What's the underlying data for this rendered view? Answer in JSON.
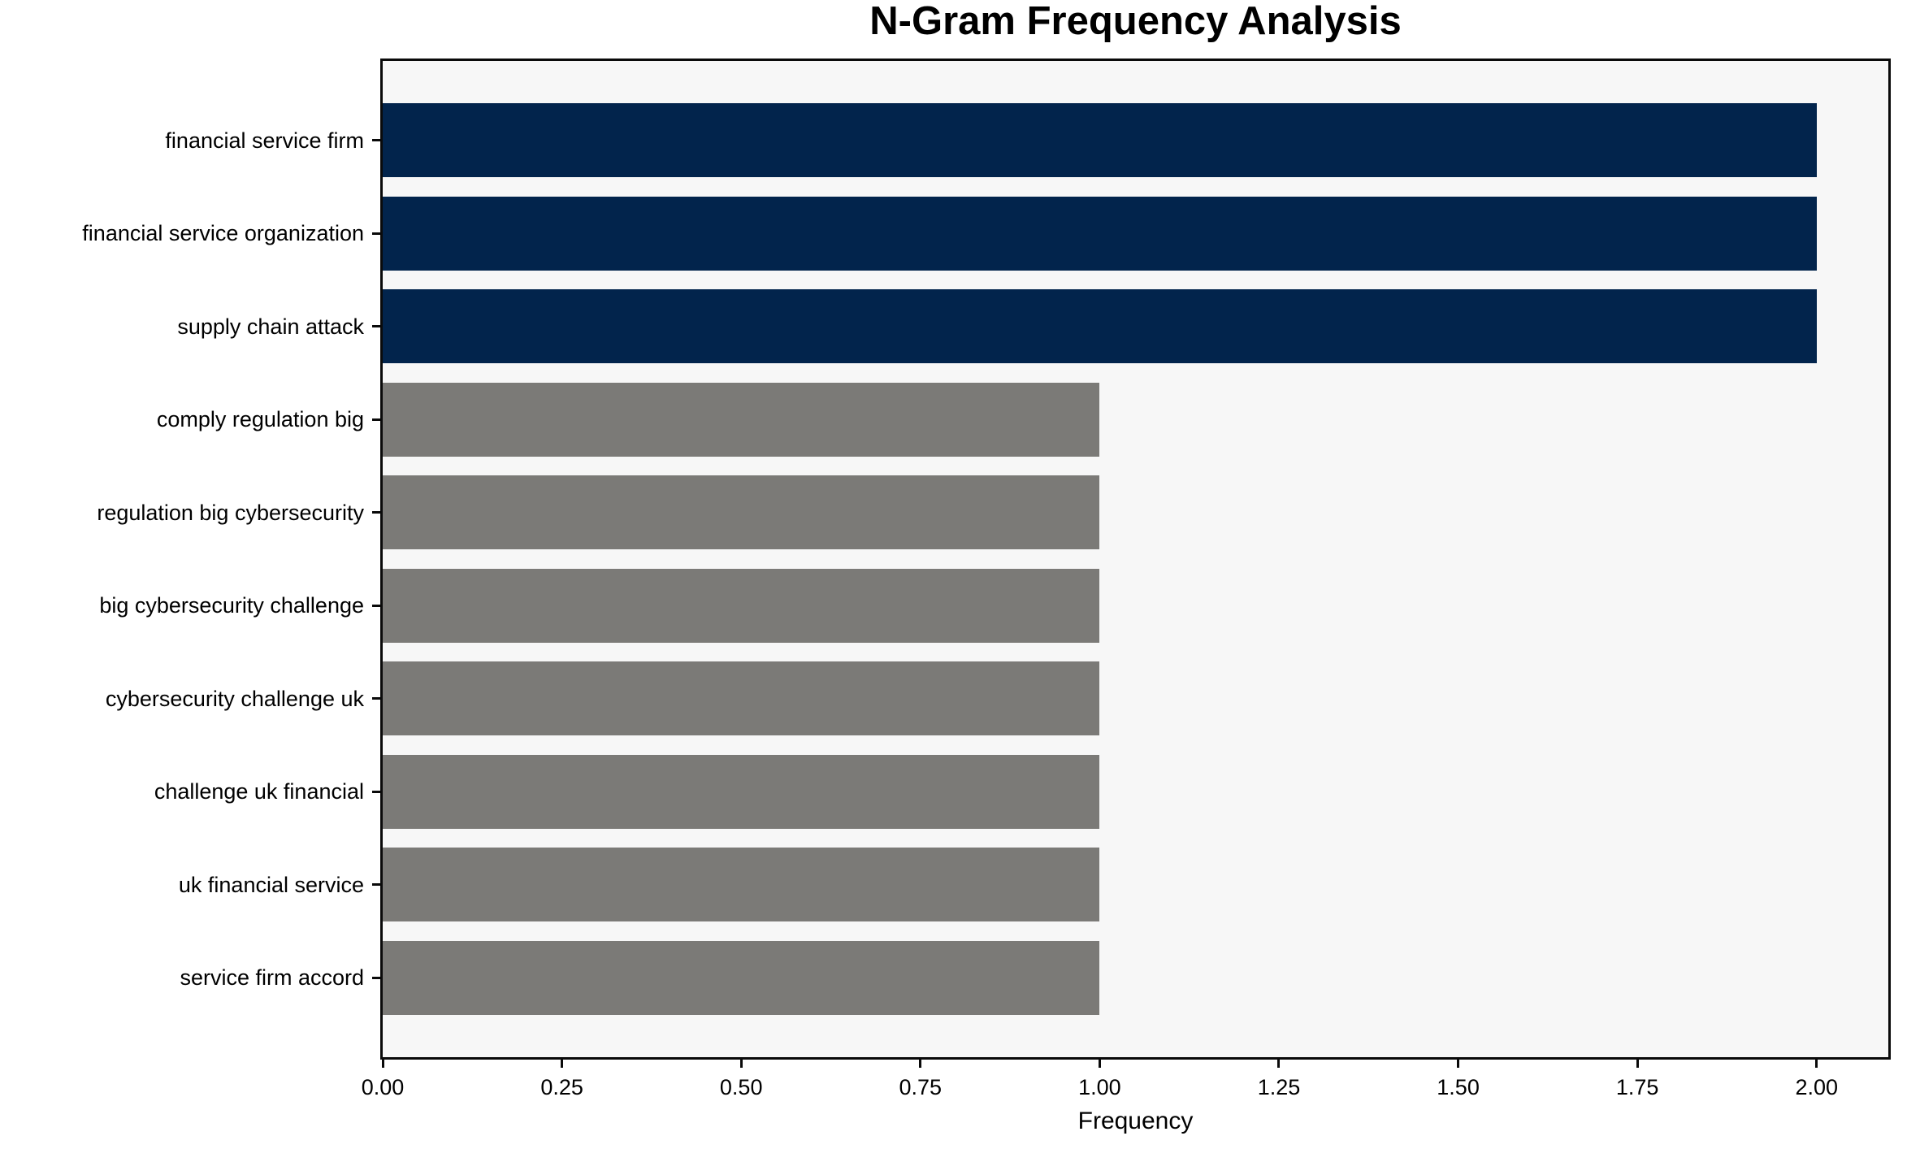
{
  "chart_data": {
    "type": "bar",
    "orientation": "horizontal",
    "title": "N-Gram Frequency Analysis",
    "xlabel": "Frequency",
    "ylabel": "",
    "categories": [
      "financial service firm",
      "financial service organization",
      "supply chain attack",
      "comply regulation big",
      "regulation big cybersecurity",
      "big cybersecurity challenge",
      "cybersecurity challenge uk",
      "challenge uk financial",
      "uk financial service",
      "service firm accord"
    ],
    "values": [
      2,
      2,
      2,
      1,
      1,
      1,
      1,
      1,
      1,
      1
    ],
    "bar_colors": [
      "#02244c",
      "#02244c",
      "#02244c",
      "#7b7a77",
      "#7b7a77",
      "#7b7a77",
      "#7b7a77",
      "#7b7a77",
      "#7b7a77",
      "#7b7a77"
    ],
    "xlim": [
      0,
      2.1
    ],
    "xticks": [
      "0.00",
      "0.25",
      "0.50",
      "0.75",
      "1.00",
      "1.25",
      "1.50",
      "1.75",
      "2.00"
    ],
    "xtick_values": [
      0,
      0.25,
      0.5,
      0.75,
      1.0,
      1.25,
      1.5,
      1.75,
      2.0
    ],
    "grid": false,
    "legend": null,
    "colors": {
      "highlight_bar": "#02244c",
      "default_bar": "#7b7a77",
      "plot_background": "#f7f7f7",
      "figure_background": "#ffffff",
      "spine": "#0a0a0a",
      "text": "#000000"
    }
  }
}
